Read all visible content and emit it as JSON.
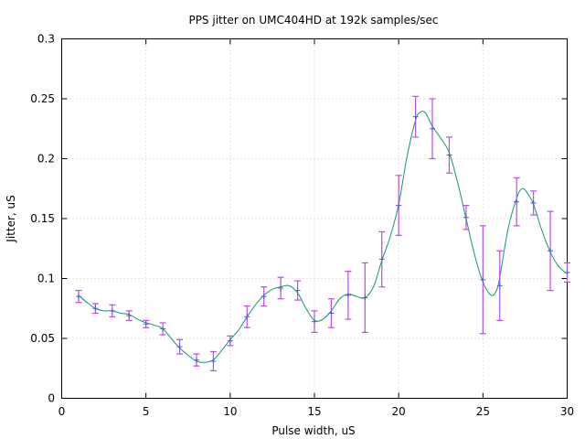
{
  "chart_data": {
    "type": "scatter",
    "title": "PPS jitter on UMC404HD at 192k samples/sec",
    "xlabel": "Pulse width, uS",
    "ylabel": "Jitter, uS",
    "xlim": [
      0,
      30
    ],
    "ylim": [
      0,
      0.3
    ],
    "x_ticks": [
      "0",
      "5",
      "10",
      "15",
      "20",
      "25",
      "30"
    ],
    "y_ticks": [
      "0",
      "0.05",
      "0.1",
      "0.15",
      "0.2",
      "0.25",
      "0.3"
    ],
    "grid": true,
    "legend": "none",
    "colors": {
      "points": "#5b57d6",
      "errorbars": "#b84fe0",
      "smooth": "#12957a"
    },
    "series": [
      {
        "x": [
          1,
          2,
          3,
          4,
          5,
          6,
          7,
          8,
          9,
          10,
          11,
          12,
          13,
          14,
          15,
          16,
          17,
          18,
          19,
          20,
          21,
          22,
          23,
          24,
          25,
          26,
          27,
          28,
          29,
          30
        ],
        "y": [
          0.085,
          0.075,
          0.073,
          0.069,
          0.062,
          0.058,
          0.043,
          0.032,
          0.031,
          0.048,
          0.068,
          0.085,
          0.092,
          0.09,
          0.064,
          0.071,
          0.086,
          0.084,
          0.116,
          0.161,
          0.235,
          0.225,
          0.203,
          0.151,
          0.099,
          0.094,
          0.164,
          0.163,
          0.123,
          0.105
        ],
        "yerr": [
          0.005,
          0.004,
          0.005,
          0.004,
          0.003,
          0.005,
          0.006,
          0.005,
          0.008,
          0.004,
          0.009,
          0.008,
          0.009,
          0.008,
          0.009,
          0.012,
          0.02,
          0.029,
          0.023,
          0.025,
          0.017,
          0.025,
          0.015,
          0.01,
          0.045,
          0.029,
          0.02,
          0.01,
          0.033,
          0.008
        ]
      },
      {
        "x": [
          1,
          1.5,
          2,
          2.5,
          3,
          3.5,
          4,
          4.5,
          5,
          5.5,
          6,
          6.5,
          7,
          7.5,
          8,
          8.5,
          9,
          9.5,
          10,
          10.5,
          11,
          11.5,
          12,
          12.5,
          13,
          13.5,
          14,
          14.5,
          15,
          15.5,
          16,
          16.5,
          17,
          17.5,
          18,
          18.5,
          19,
          19.5,
          20,
          20.5,
          21,
          21.3,
          21.6,
          22,
          22.5,
          23,
          23.5,
          24,
          24.5,
          25,
          25.5,
          25.8,
          26,
          26.5,
          27,
          27.3,
          27.6,
          28,
          28.5,
          29,
          29.5,
          30
        ],
        "y": [
          0.086,
          0.08,
          0.075,
          0.073,
          0.073,
          0.071,
          0.07,
          0.066,
          0.063,
          0.061,
          0.058,
          0.05,
          0.042,
          0.036,
          0.031,
          0.03,
          0.032,
          0.04,
          0.049,
          0.057,
          0.068,
          0.078,
          0.086,
          0.091,
          0.093,
          0.094,
          0.088,
          0.075,
          0.065,
          0.066,
          0.073,
          0.083,
          0.087,
          0.085,
          0.084,
          0.093,
          0.115,
          0.135,
          0.162,
          0.202,
          0.232,
          0.239,
          0.238,
          0.227,
          0.217,
          0.205,
          0.18,
          0.15,
          0.12,
          0.097,
          0.086,
          0.09,
          0.101,
          0.142,
          0.167,
          0.175,
          0.172,
          0.162,
          0.14,
          0.122,
          0.11,
          0.104
        ]
      }
    ]
  }
}
